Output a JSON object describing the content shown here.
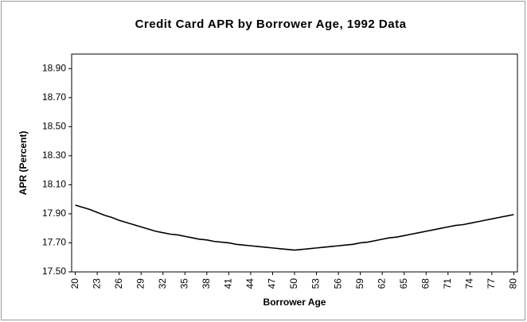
{
  "chart_data": {
    "type": "line",
    "title": "Credit Card APR by Borrower Age, 1992 Data",
    "xlabel": "Borrower Age",
    "ylabel": "APR (Percent)",
    "x": [
      20,
      21,
      22,
      23,
      24,
      25,
      26,
      27,
      28,
      29,
      30,
      31,
      32,
      33,
      34,
      35,
      36,
      37,
      38,
      39,
      40,
      41,
      42,
      43,
      44,
      45,
      46,
      47,
      48,
      49,
      50,
      51,
      52,
      53,
      54,
      55,
      56,
      57,
      58,
      59,
      60,
      61,
      62,
      63,
      64,
      65,
      66,
      67,
      68,
      69,
      70,
      71,
      72,
      73,
      74,
      75,
      76,
      77,
      78,
      79,
      80
    ],
    "series": [
      {
        "color": "#000000",
        "values": [
          17.96,
          17.945,
          17.93,
          17.91,
          17.89,
          17.875,
          17.855,
          17.84,
          17.825,
          17.81,
          17.795,
          17.78,
          17.77,
          17.76,
          17.755,
          17.745,
          17.735,
          17.725,
          17.72,
          17.71,
          17.705,
          17.7,
          17.69,
          17.685,
          17.68,
          17.675,
          17.67,
          17.665,
          17.66,
          17.655,
          17.65,
          17.655,
          17.66,
          17.665,
          17.67,
          17.675,
          17.68,
          17.685,
          17.69,
          17.7,
          17.705,
          17.715,
          17.725,
          17.735,
          17.74,
          17.75,
          17.76,
          17.77,
          17.78,
          17.79,
          17.8,
          17.81,
          17.82,
          17.825,
          17.835,
          17.845,
          17.855,
          17.865,
          17.875,
          17.885,
          17.895
        ]
      }
    ],
    "xlim": [
      19.5,
      80.5
    ],
    "xticks": [
      20,
      23,
      26,
      29,
      32,
      35,
      38,
      41,
      44,
      47,
      50,
      53,
      56,
      59,
      62,
      65,
      68,
      71,
      74,
      77,
      80
    ],
    "ylim": [
      17.5,
      19.0
    ],
    "yticks": [
      {
        "value": 17.5,
        "label": "17.50"
      },
      {
        "value": 17.7,
        "label": "17.70"
      },
      {
        "value": 17.9,
        "label": "17.90"
      },
      {
        "value": 18.1,
        "label": "18.10"
      },
      {
        "value": 18.3,
        "label": "18.30"
      },
      {
        "value": 18.5,
        "label": "18.50"
      },
      {
        "value": 18.7,
        "label": "18.70"
      },
      {
        "value": 18.9,
        "label": "18.90"
      }
    ],
    "grid": false
  }
}
